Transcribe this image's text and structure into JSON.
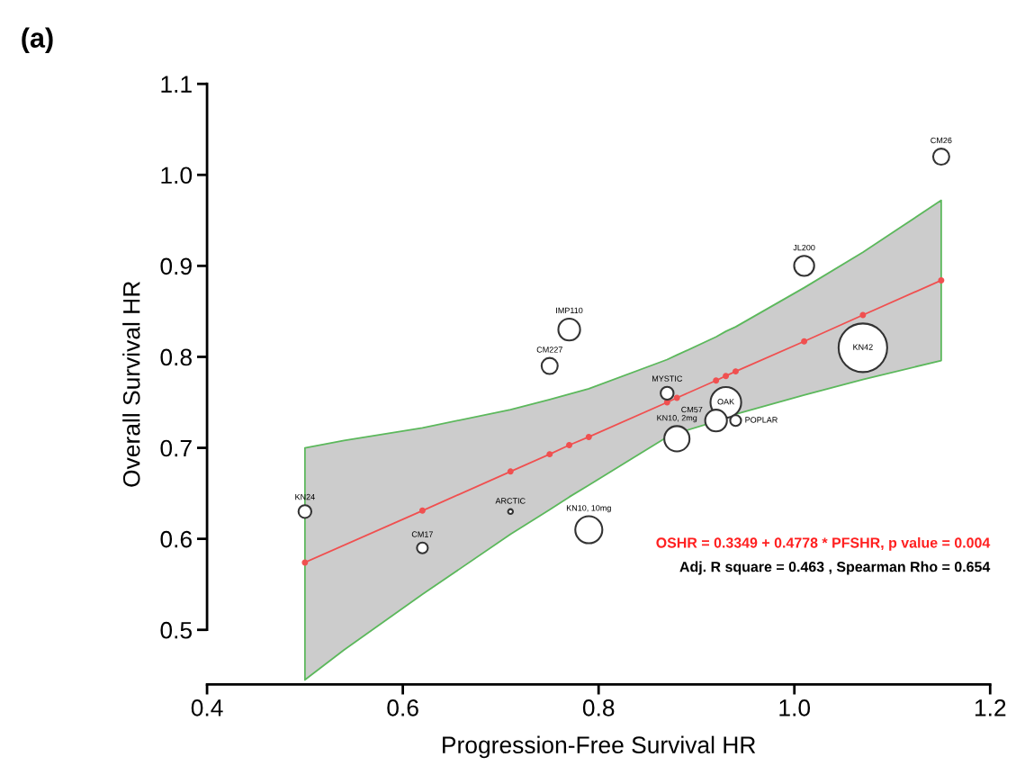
{
  "chart_data": {
    "type": "bubble",
    "title": "(a)",
    "xlabel": "Progression-Free Survival HR",
    "ylabel": "Overall Survival HR",
    "xlim": [
      0.4,
      1.2
    ],
    "ylim": [
      0.44,
      1.1
    ],
    "xticks": [
      0.4,
      0.6,
      0.8,
      {
        "value": 1,
        "label": "1.0"
      },
      1.2
    ],
    "yticks": [
      0.5,
      0.6,
      0.7,
      0.8,
      0.9,
      {
        "value": 1,
        "label": "1.0"
      },
      1.1
    ],
    "grid": false,
    "legend": false,
    "series": [
      {
        "color": "#333333",
        "x": [
          0.5,
          0.62,
          0.71,
          0.79,
          0.75,
          0.77,
          0.87,
          0.93,
          0.92,
          0.94,
          0.88,
          1.01,
          1.07,
          1.15
        ],
        "values": [
          0.63,
          0.59,
          0.63,
          0.61,
          0.79,
          0.83,
          0.76,
          0.75,
          0.73,
          0.73,
          0.71,
          0.9,
          0.81,
          1.02
        ],
        "sizes": [
          0.07,
          0.05,
          0.01,
          0.31,
          0.11,
          0.2,
          0.07,
          0.4,
          0.2,
          0.05,
          0.27,
          0.17,
          1,
          0.11
        ],
        "value_labels": [
          "KN24",
          "CM17",
          "ARCTIC",
          "KN10, 10mg",
          "CM227",
          "IMP110",
          "MYSTIC",
          "OAK",
          "CM57",
          "POPLAR",
          "KN10, 2mg",
          "JL200",
          "KN42",
          "CM26"
        ]
      },
      {
        "type": "line",
        "color": "#f05050",
        "marker": "circle",
        "x": [
          0.5,
          0.54,
          0.62,
          0.71,
          0.75,
          0.77,
          0.79,
          0.87,
          0.88,
          0.92,
          0.93,
          0.94,
          1.01,
          1.07,
          1.15
        ],
        "values": [
          0.574,
          null,
          0.631,
          0.674,
          0.693,
          0.703,
          0.712,
          0.75,
          0.755,
          0.774,
          0.779,
          0.784,
          0.817,
          0.846,
          0.884
        ],
        "lower": [
          0.445,
          0.478,
          0.539,
          0.605,
          0.632,
          0.646,
          0.659,
          0.712,
          0.716,
          0.729,
          0.733,
          0.737,
          0.758,
          0.775,
          0.796
        ],
        "upper": [
          0.7,
          0.708,
          0.722,
          0.742,
          0.753,
          0.759,
          0.765,
          0.797,
          0.802,
          0.822,
          0.828,
          0.833,
          0.876,
          0.915,
          0.972
        ]
      }
    ],
    "annotations": [
      "OSHR = 0.3349 + 0.4778 * PFSHR, p value = 0.004",
      "Adj. R square = 0.463 , Spearman Rho = 0.654"
    ]
  }
}
